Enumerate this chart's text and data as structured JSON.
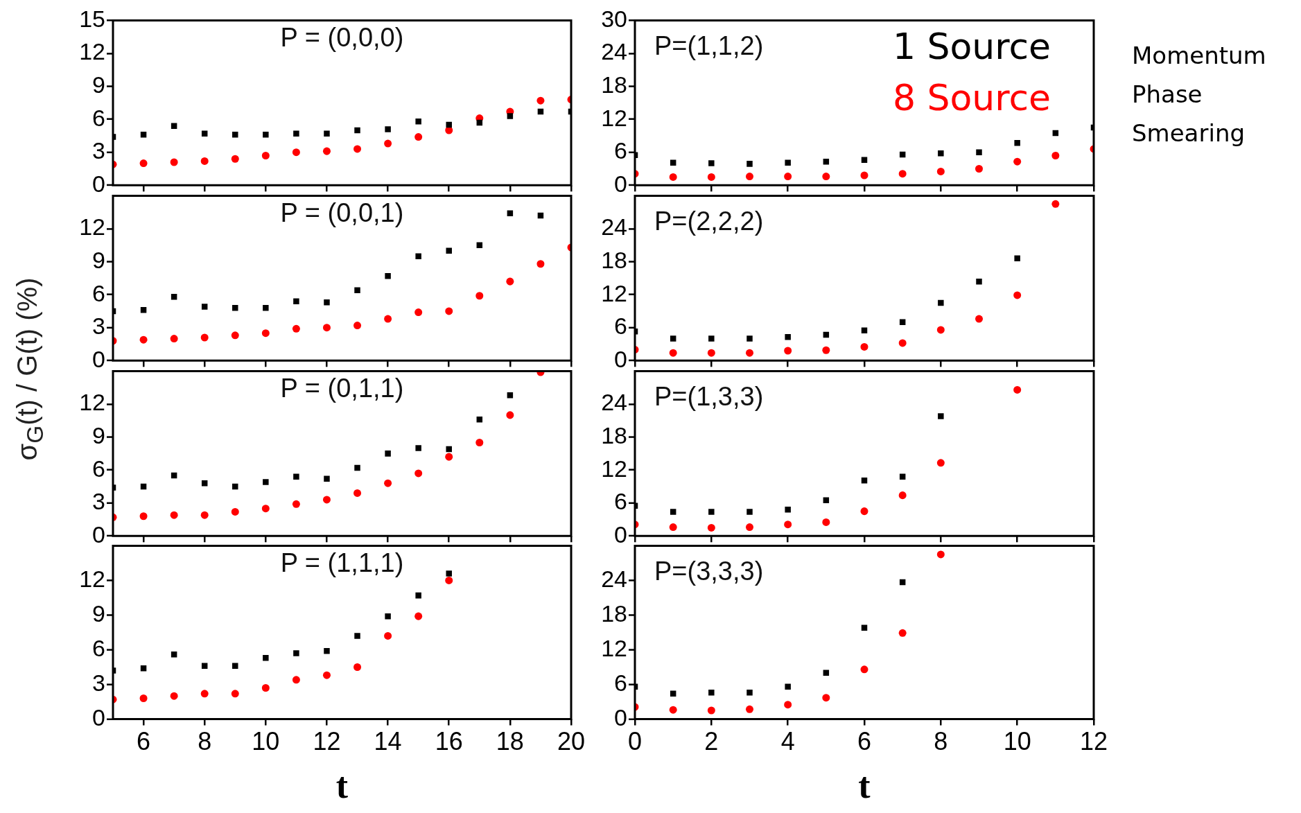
{
  "chart_data": [
    {
      "type": "scatter",
      "title": "P = (0,0,0)",
      "ylabel": "σ$_{G}$(t) / G(t)   (%)",
      "grid": false,
      "legend": false,
      "tick_labels": "y",
      "xlim": [
        5,
        20
      ],
      "xticks": [
        6,
        8,
        10,
        12,
        14,
        16,
        18,
        20
      ],
      "ylim": [
        0,
        15
      ],
      "yticks": [
        0,
        3,
        6,
        9,
        12,
        15
      ],
      "series": [
        {
          "color": "#000000",
          "marker": "square",
          "x": [
            5,
            6,
            7,
            8,
            9,
            10,
            11,
            12,
            13,
            14,
            15,
            16,
            17,
            18,
            19,
            20
          ],
          "values": [
            4.4,
            4.6,
            5.4,
            4.7,
            4.6,
            4.6,
            4.7,
            4.7,
            5.0,
            5.1,
            5.8,
            5.5,
            5.7,
            6.3,
            6.7,
            6.7
          ]
        },
        {
          "color": "#ff0000",
          "marker": "circle",
          "x": [
            5,
            6,
            7,
            8,
            9,
            10,
            11,
            12,
            13,
            14,
            15,
            16,
            17,
            18,
            19,
            20
          ],
          "values": [
            1.9,
            2.0,
            2.1,
            2.2,
            2.4,
            2.7,
            3.0,
            3.1,
            3.3,
            3.8,
            4.4,
            5.0,
            6.1,
            6.7,
            7.7,
            7.8
          ]
        }
      ]
    },
    {
      "type": "scatter",
      "title": "P = (0,0,1)",
      "grid": false,
      "legend": false,
      "tick_labels": "y",
      "xlim": [
        5,
        20
      ],
      "xticks": [
        6,
        8,
        10,
        12,
        14,
        16,
        18,
        20
      ],
      "ylim": [
        0,
        15
      ],
      "yticks": [
        0,
        3,
        6,
        9,
        12
      ],
      "series": [
        {
          "color": "#000000",
          "marker": "square",
          "x": [
            5,
            6,
            7,
            8,
            9,
            10,
            11,
            12,
            13,
            14,
            15,
            16,
            17,
            18,
            19
          ],
          "values": [
            4.5,
            4.6,
            5.8,
            4.9,
            4.8,
            4.8,
            5.4,
            5.3,
            6.4,
            7.7,
            9.5,
            10.0,
            10.5,
            13.4,
            13.2
          ]
        },
        {
          "color": "#ff0000",
          "marker": "circle",
          "x": [
            5,
            6,
            7,
            8,
            9,
            10,
            11,
            12,
            13,
            14,
            15,
            16,
            17,
            18,
            19,
            20
          ],
          "values": [
            1.8,
            1.9,
            2.0,
            2.1,
            2.3,
            2.5,
            2.9,
            3.0,
            3.2,
            3.8,
            4.4,
            4.5,
            5.9,
            7.2,
            8.8,
            10.3
          ]
        }
      ]
    },
    {
      "type": "scatter",
      "title": "P = (0,1,1)",
      "grid": false,
      "legend": false,
      "tick_labels": "y",
      "xlim": [
        5,
        20
      ],
      "xticks": [
        6,
        8,
        10,
        12,
        14,
        16,
        18,
        20
      ],
      "ylim": [
        0,
        15
      ],
      "yticks": [
        0,
        3,
        6,
        9,
        12
      ],
      "series": [
        {
          "color": "#000000",
          "marker": "square",
          "x": [
            5,
            6,
            7,
            8,
            9,
            10,
            11,
            12,
            13,
            14,
            15,
            16,
            17,
            18
          ],
          "values": [
            4.4,
            4.5,
            5.5,
            4.8,
            4.5,
            4.9,
            5.4,
            5.2,
            6.2,
            7.5,
            8.0,
            7.9,
            10.6,
            12.8
          ]
        },
        {
          "color": "#ff0000",
          "marker": "circle",
          "x": [
            5,
            6,
            7,
            8,
            9,
            10,
            11,
            12,
            13,
            14,
            15,
            16,
            17,
            18,
            19
          ],
          "values": [
            1.7,
            1.8,
            1.9,
            1.9,
            2.2,
            2.5,
            2.9,
            3.3,
            3.9,
            4.8,
            5.7,
            7.2,
            8.5,
            11.0,
            14.9
          ]
        }
      ]
    },
    {
      "type": "scatter",
      "title": "P = (1,1,1)",
      "xlabel": "t",
      "grid": false,
      "legend": false,
      "xlim": [
        5,
        20
      ],
      "xticks": [
        6,
        8,
        10,
        12,
        14,
        16,
        18,
        20
      ],
      "ylim": [
        0,
        15
      ],
      "yticks": [
        0,
        3,
        6,
        9,
        12
      ],
      "series": [
        {
          "color": "#000000",
          "marker": "square",
          "x": [
            5,
            6,
            7,
            8,
            9,
            10,
            11,
            12,
            13,
            14,
            15,
            16
          ],
          "values": [
            4.2,
            4.4,
            5.6,
            4.6,
            4.6,
            5.3,
            5.7,
            5.9,
            7.2,
            8.9,
            10.7,
            12.6
          ]
        },
        {
          "color": "#ff0000",
          "marker": "circle",
          "x": [
            5,
            6,
            7,
            8,
            9,
            10,
            11,
            12,
            13,
            14,
            15,
            16
          ],
          "values": [
            1.7,
            1.8,
            2.0,
            2.2,
            2.2,
            2.7,
            3.4,
            3.8,
            4.5,
            7.2,
            8.9,
            12.0
          ]
        }
      ]
    },
    {
      "type": "scatter",
      "title": "P=(1,1,2)",
      "grid": false,
      "legend": "top right",
      "tick_labels": "y",
      "xlim": [
        0,
        12
      ],
      "xticks": [
        0,
        2,
        4,
        6,
        8,
        10,
        12
      ],
      "ylim": [
        0,
        30
      ],
      "yticks": [
        0,
        6,
        12,
        18,
        24,
        30
      ],
      "annotations": [
        "Momentum Phase Smearing"
      ],
      "series": [
        {
          "name": "1 Source",
          "color": "#000000",
          "marker": "square",
          "x": [
            0,
            1,
            2,
            3,
            4,
            5,
            6,
            7,
            8,
            9,
            10,
            11,
            12
          ],
          "values": [
            5.5,
            4.1,
            4.0,
            3.9,
            4.1,
            4.3,
            4.6,
            5.6,
            5.8,
            6.0,
            7.7,
            9.5,
            10.5
          ]
        },
        {
          "name": "8 Source",
          "color": "#ff0000",
          "marker": "circle",
          "x": [
            0,
            1,
            2,
            3,
            4,
            5,
            6,
            7,
            8,
            9,
            10,
            11,
            12
          ],
          "values": [
            2.1,
            1.5,
            1.5,
            1.6,
            1.6,
            1.6,
            1.8,
            2.1,
            2.5,
            3.0,
            4.3,
            5.4,
            6.6
          ]
        }
      ]
    },
    {
      "type": "scatter",
      "title": "P=(2,2,2)",
      "grid": false,
      "legend": false,
      "tick_labels": "y",
      "xlim": [
        0,
        12
      ],
      "xticks": [
        0,
        2,
        4,
        6,
        8,
        10,
        12
      ],
      "ylim": [
        0,
        30
      ],
      "yticks": [
        0,
        6,
        12,
        18,
        24
      ],
      "series": [
        {
          "color": "#000000",
          "marker": "square",
          "x": [
            0,
            1,
            2,
            3,
            4,
            5,
            6,
            7,
            8,
            9,
            10
          ],
          "values": [
            5.3,
            4.0,
            4.0,
            4.0,
            4.3,
            4.7,
            5.5,
            7.0,
            10.5,
            14.4,
            18.6
          ]
        },
        {
          "color": "#ff0000",
          "marker": "circle",
          "x": [
            0,
            1,
            2,
            3,
            4,
            5,
            6,
            7,
            8,
            9,
            10,
            11
          ],
          "values": [
            2.0,
            1.4,
            1.4,
            1.4,
            1.8,
            1.9,
            2.5,
            3.2,
            5.6,
            7.6,
            11.9,
            28.5
          ]
        }
      ]
    },
    {
      "type": "scatter",
      "title": "P=(1,3,3)",
      "grid": false,
      "legend": false,
      "tick_labels": "y",
      "xlim": [
        0,
        12
      ],
      "xticks": [
        0,
        2,
        4,
        6,
        8,
        10,
        12
      ],
      "ylim": [
        0,
        30
      ],
      "yticks": [
        0,
        6,
        12,
        18,
        24
      ],
      "series": [
        {
          "color": "#000000",
          "marker": "square",
          "x": [
            0,
            1,
            2,
            3,
            4,
            5,
            6,
            7,
            8
          ],
          "values": [
            5.5,
            4.4,
            4.4,
            4.4,
            4.8,
            6.5,
            10.1,
            10.8,
            21.8
          ]
        },
        {
          "color": "#ff0000",
          "marker": "circle",
          "x": [
            0,
            1,
            2,
            3,
            4,
            5,
            6,
            7,
            8,
            10
          ],
          "values": [
            2.1,
            1.6,
            1.5,
            1.6,
            2.1,
            2.5,
            4.5,
            7.4,
            13.3,
            26.6
          ]
        }
      ]
    },
    {
      "type": "scatter",
      "title": "P=(3,3,3)",
      "xlabel": "t",
      "grid": false,
      "legend": false,
      "xlim": [
        0,
        12
      ],
      "xticks": [
        0,
        2,
        4,
        6,
        8,
        10,
        12
      ],
      "ylim": [
        0,
        30
      ],
      "yticks": [
        0,
        6,
        12,
        18,
        24
      ],
      "series": [
        {
          "color": "#000000",
          "marker": "square",
          "x": [
            0,
            1,
            2,
            3,
            4,
            5,
            6,
            7
          ],
          "values": [
            5.6,
            4.4,
            4.6,
            4.6,
            5.6,
            8.0,
            15.8,
            23.7
          ]
        },
        {
          "color": "#ff0000",
          "marker": "circle",
          "x": [
            0,
            1,
            2,
            3,
            4,
            5,
            6,
            7,
            8
          ],
          "values": [
            2.1,
            1.6,
            1.5,
            1.7,
            2.5,
            3.7,
            8.6,
            14.9,
            28.5
          ]
        }
      ]
    }
  ]
}
